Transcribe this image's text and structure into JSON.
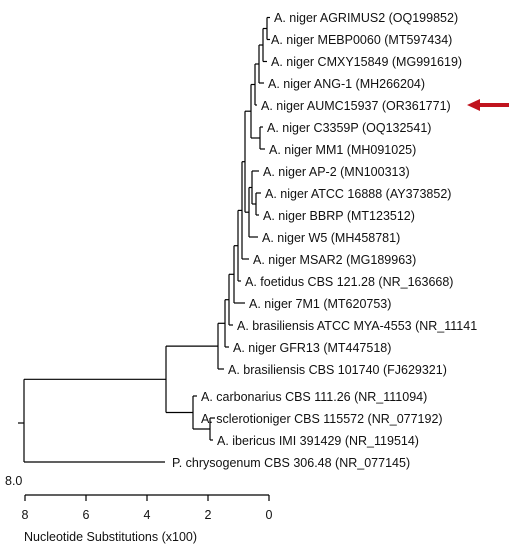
{
  "tree": {
    "taxa": [
      "A. niger AGRIMUS2 (OQ199852)",
      "A. niger MEBP0060 (MT597434)",
      "A. niger CMXY15849 (MG991619)",
      "A. niger ANG-1 (MH266204)",
      "A. niger AUMC15937 (OR361771)",
      "A. niger C3359P (OQ132541)",
      "A. niger MM1 (MH091025)",
      "A. niger AP-2 (MN100313)",
      "A. niger ATCC 16888 (AY373852)",
      "A. niger BBRP (MT123512)",
      "A. niger W5 (MH458781)",
      "A. niger MSAR2 (MG189963)",
      "A. foetidus CBS 121.28 (NR_163668)",
      "A. niger 7M1 (MT620753)",
      "A. brasiliensis ATCC MYA-4553 (NR_11141",
      "A. niger GFR13 (MT447518)",
      "A. brasiliensis CBS 101740 (FJ629321)",
      "A. carbonarius CBS 111.26 (NR_111094)",
      "A. sclerotioniger CBS 115572 (NR_077192)",
      "A. ibericus IMI 391429 (NR_119514)",
      "P. chrysogenum CBS 306.48 (NR_077145)"
    ],
    "highlighted_taxon": "A. niger AUMC15937 (OR361771)",
    "root_label": "8.0",
    "axis": {
      "ticks": [
        "8",
        "6",
        "4",
        "2",
        "0"
      ],
      "label": "Nucleotide Substitutions (x100)"
    },
    "colors": {
      "line": "#000000",
      "arrow": "#c0141e",
      "text": "#111111"
    }
  }
}
